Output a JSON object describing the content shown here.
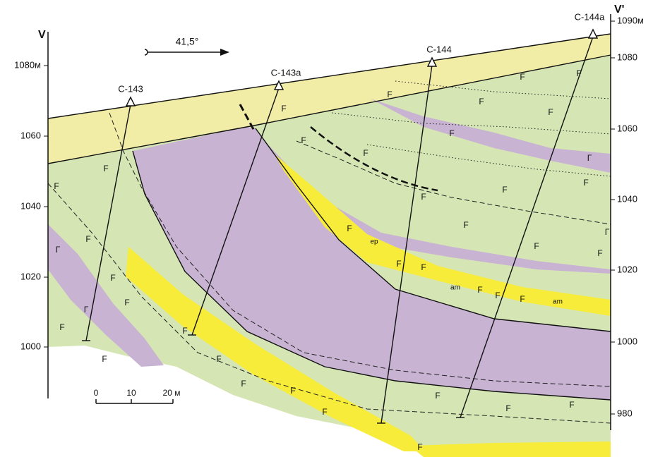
{
  "axes": {
    "left_label": "V",
    "right_label": "V'",
    "left_elevations": [
      "1080м",
      "1060",
      "1040",
      "1020",
      "1000"
    ],
    "right_elevations": [
      "1090м",
      "1080",
      "1060",
      "1040",
      "1020",
      "1000",
      "980"
    ]
  },
  "direction": "41,5°",
  "wells": [
    "С-143",
    "С-143а",
    "С-144",
    "С-144а"
  ],
  "scale": [
    "0",
    "10",
    "20 м"
  ],
  "rock_labels": [
    "F",
    "F",
    "F",
    "Г",
    "Г",
    "F",
    "F",
    "F",
    "F",
    "F",
    "F",
    "F",
    "F",
    "F",
    "F",
    "F",
    "F",
    "F",
    "F",
    "F",
    "F",
    "F",
    "F",
    "F",
    "F",
    "F",
    "F",
    "F",
    "F",
    "F",
    "F",
    "Г",
    "Г",
    "F",
    "F",
    "F",
    "F",
    "F",
    "ер",
    "am",
    "am",
    "F",
    "F",
    "F"
  ]
}
